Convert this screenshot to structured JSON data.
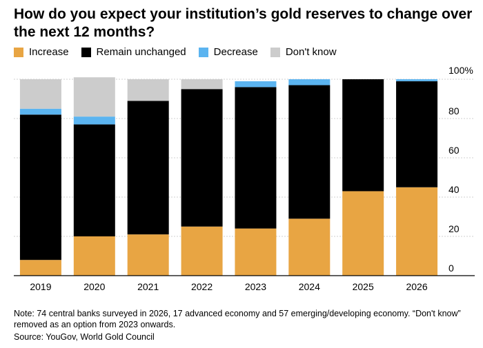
{
  "title": "How do you expect your institution’s gold reserves to change over the next 12 months?",
  "note": "Note: 74 central banks surveyed in 2026, 17 advanced economy and 57 emerging/developing economy. “Don't know” removed as an option from 2023 onwards.",
  "source": "Source: YouGov, World Gold Council",
  "colors": {
    "Increase": "#E8A543",
    "Remain unchanged": "#000000",
    "Decrease": "#5BB4F0",
    "Don't know": "#CCCCCC"
  },
  "chart_data": {
    "type": "bar",
    "stacked": true,
    "categories": [
      "2019",
      "2020",
      "2021",
      "2022",
      "2023",
      "2024",
      "2025",
      "2026"
    ],
    "series": [
      {
        "name": "Increase",
        "values": [
          8,
          20,
          21,
          25,
          24,
          29,
          43,
          45
        ]
      },
      {
        "name": "Remain unchanged",
        "values": [
          74,
          57,
          68,
          70,
          72,
          68,
          57,
          54
        ]
      },
      {
        "name": "Decrease",
        "values": [
          3,
          4,
          0,
          0,
          3,
          3,
          0,
          1
        ]
      },
      {
        "name": "Don't know",
        "values": [
          15,
          20,
          11,
          5,
          0,
          0,
          0,
          0
        ]
      }
    ],
    "ylim": [
      0,
      100
    ],
    "yticks": [
      0,
      20,
      40,
      60,
      80,
      100
    ],
    "ytick_labels": [
      "0",
      "20",
      "40",
      "60",
      "80",
      "100%"
    ],
    "yaxis_position": "right",
    "grid": true,
    "legend_position": "top-left"
  }
}
